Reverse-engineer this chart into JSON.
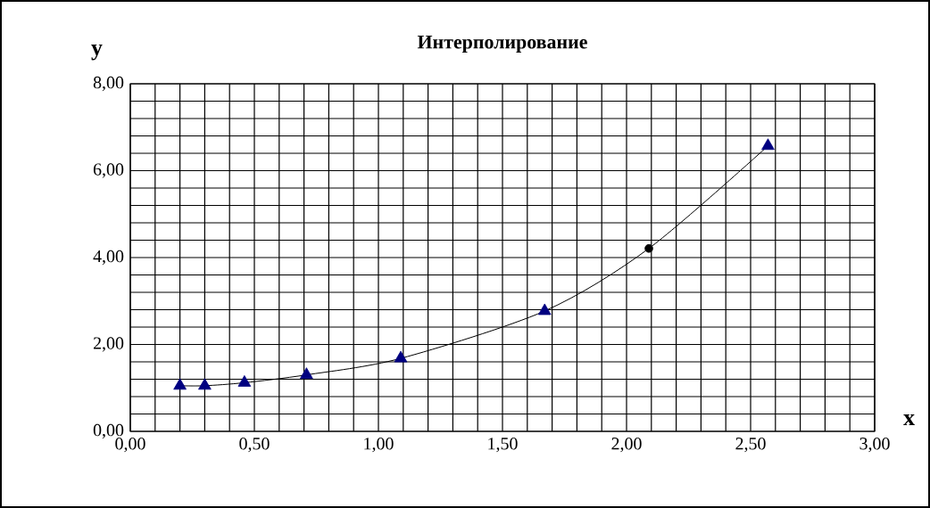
{
  "chart_data": {
    "type": "scatter",
    "title": "Интерполирование",
    "xlabel": "x",
    "ylabel": "y",
    "xlim": [
      0,
      3
    ],
    "ylim": [
      0,
      8
    ],
    "grid": true,
    "xticks": [
      {
        "value": 0,
        "label": "0,00"
      },
      {
        "value": 0.1,
        "label": null
      },
      {
        "value": 0.2,
        "label": null
      },
      {
        "value": 0.3,
        "label": null
      },
      {
        "value": 0.4,
        "label": null
      },
      {
        "value": 0.5,
        "label": "0,50"
      },
      {
        "value": 0.6,
        "label": null
      },
      {
        "value": 0.7,
        "label": null
      },
      {
        "value": 0.8,
        "label": null
      },
      {
        "value": 0.9,
        "label": null
      },
      {
        "value": 1,
        "label": "1,00"
      },
      {
        "value": 1.1,
        "label": null
      },
      {
        "value": 1.2,
        "label": null
      },
      {
        "value": 1.3,
        "label": null
      },
      {
        "value": 1.4,
        "label": null
      },
      {
        "value": 1.5,
        "label": "1,50"
      },
      {
        "value": 1.6,
        "label": null
      },
      {
        "value": 1.7,
        "label": null
      },
      {
        "value": 1.8,
        "label": null
      },
      {
        "value": 1.9,
        "label": null
      },
      {
        "value": 2,
        "label": "2,00"
      },
      {
        "value": 2.1,
        "label": null
      },
      {
        "value": 2.2,
        "label": null
      },
      {
        "value": 2.3,
        "label": null
      },
      {
        "value": 2.4,
        "label": null
      },
      {
        "value": 2.5,
        "label": "2,50"
      },
      {
        "value": 2.6,
        "label": null
      },
      {
        "value": 2.7,
        "label": null
      },
      {
        "value": 2.8,
        "label": null
      },
      {
        "value": 2.9,
        "label": null
      },
      {
        "value": 3,
        "label": "3,00"
      }
    ],
    "yticks": [
      {
        "value": 0,
        "label": "0,00"
      },
      {
        "value": 0.4,
        "label": null
      },
      {
        "value": 0.8,
        "label": null
      },
      {
        "value": 1.2,
        "label": null
      },
      {
        "value": 1.6,
        "label": null
      },
      {
        "value": 2,
        "label": "2,00"
      },
      {
        "value": 2.4,
        "label": null
      },
      {
        "value": 2.8,
        "label": null
      },
      {
        "value": 3.2,
        "label": null
      },
      {
        "value": 3.6,
        "label": null
      },
      {
        "value": 4,
        "label": "4,00"
      },
      {
        "value": 4.4,
        "label": null
      },
      {
        "value": 4.8,
        "label": null
      },
      {
        "value": 5.2,
        "label": null
      },
      {
        "value": 5.6,
        "label": null
      },
      {
        "value": 6,
        "label": "6,00"
      },
      {
        "value": 6.4,
        "label": null
      },
      {
        "value": 6.8,
        "label": null
      },
      {
        "value": 7.2,
        "label": null
      },
      {
        "value": 7.6,
        "label": null
      },
      {
        "value": 8,
        "label": "8,00"
      }
    ],
    "series": [
      {
        "type": "line",
        "color": "#000000",
        "marker": "none",
        "x": [
          0.2,
          0.3,
          0.46,
          0.71,
          1.09,
          1.67,
          2.09,
          2.57
        ],
        "values": [
          1.05,
          1.05,
          1.12,
          1.3,
          1.68,
          2.77,
          4.21,
          6.57
        ]
      },
      {
        "color": "#000080",
        "marker": "triangle",
        "x": [
          0.2,
          0.3,
          0.46,
          0.71,
          1.09,
          1.67,
          2.57
        ],
        "values": [
          1.05,
          1.05,
          1.12,
          1.3,
          1.68,
          2.77,
          6.57
        ]
      },
      {
        "color": "#000000",
        "marker": "circle",
        "x": [
          2.09
        ],
        "values": [
          4.21
        ]
      }
    ]
  }
}
